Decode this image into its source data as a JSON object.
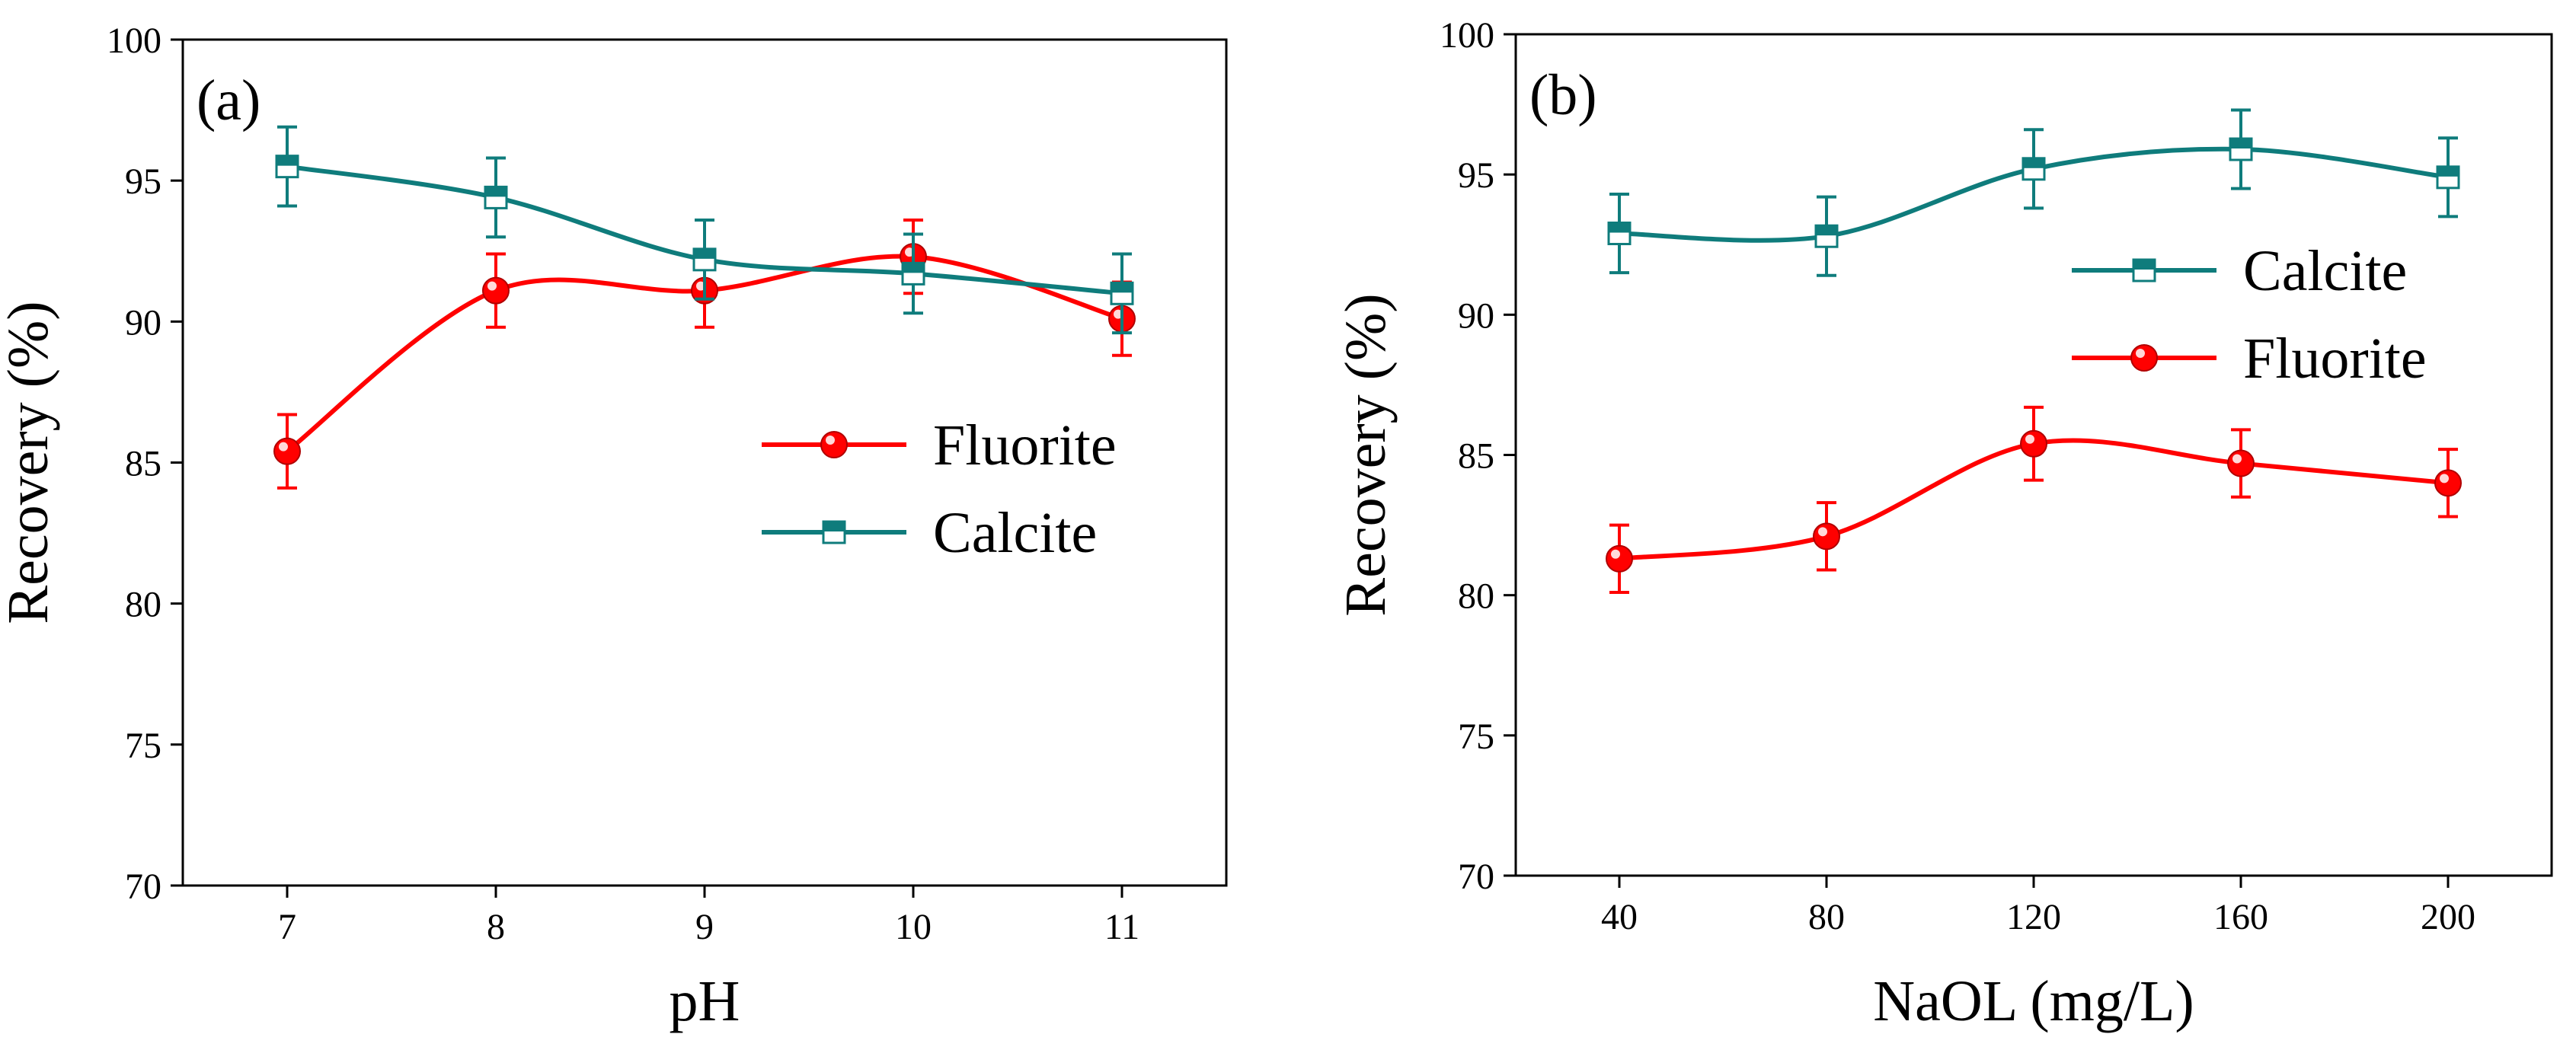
{
  "chart_data": [
    {
      "panel": "(a)",
      "type": "line",
      "xlabel": "pH",
      "ylabel": "Recovery (%)",
      "x": [
        7,
        8,
        9,
        10,
        11
      ],
      "x_tick_labels": [
        "7",
        "8",
        "9",
        "10",
        "11"
      ],
      "xlim": [
        6.5,
        11.5
      ],
      "ylim": [
        70,
        100
      ],
      "y_ticks": [
        70,
        75,
        80,
        85,
        90,
        95,
        100
      ],
      "y_tick_labels": [
        "70",
        "75",
        "80",
        "85",
        "90",
        "95",
        "100"
      ],
      "legend_position": "center-right",
      "series": [
        {
          "name": "Fluorite",
          "color": "#ff0000",
          "marker": "circle",
          "values": [
            85.4,
            91.1,
            91.1,
            92.3,
            90.1
          ],
          "errors": [
            1.3,
            1.3,
            1.3,
            1.3,
            1.3
          ]
        },
        {
          "name": "Calcite",
          "color": "#0f7c7c",
          "marker": "square",
          "values": [
            95.5,
            94.4,
            92.2,
            91.7,
            91.0
          ],
          "errors": [
            1.4,
            1.4,
            1.4,
            1.4,
            1.4
          ]
        }
      ]
    },
    {
      "panel": "(b)",
      "type": "line",
      "xlabel": "NaOL (mg/L)",
      "ylabel": "Recovery (%)",
      "x": [
        40,
        80,
        120,
        160,
        200
      ],
      "x_tick_labels": [
        "40",
        "80",
        "120",
        "160",
        "200"
      ],
      "xlim": [
        20,
        220
      ],
      "ylim": [
        70,
        100
      ],
      "y_ticks": [
        70,
        75,
        80,
        85,
        90,
        95,
        100
      ],
      "y_tick_labels": [
        "70",
        "75",
        "80",
        "85",
        "90",
        "95",
        "100"
      ],
      "legend_position": "top-right",
      "series": [
        {
          "name": "Calcite",
          "color": "#0f7c7c",
          "marker": "square",
          "values": [
            92.9,
            92.8,
            95.2,
            95.9,
            94.9
          ],
          "errors": [
            1.4,
            1.4,
            1.4,
            1.4,
            1.4
          ]
        },
        {
          "name": "Fluorite",
          "color": "#ff0000",
          "marker": "circle",
          "values": [
            81.3,
            82.1,
            85.4,
            84.7,
            84.0
          ],
          "errors": [
            1.2,
            1.2,
            1.3,
            1.2,
            1.2
          ]
        }
      ]
    }
  ]
}
